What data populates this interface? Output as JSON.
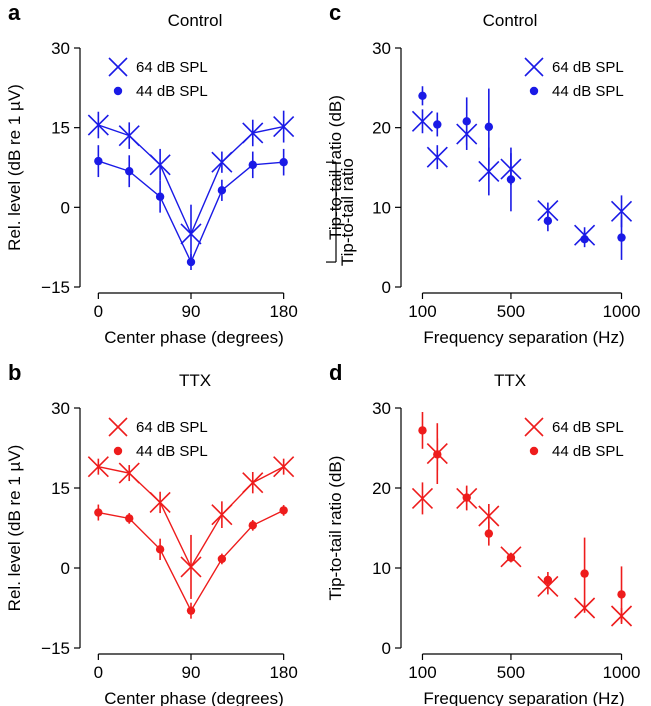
{
  "chart_data": [
    {
      "id": "a",
      "type": "line",
      "panel_letter": "a",
      "title": "Control",
      "xlabel": "Center phase (degrees)",
      "ylabel": "Rel. level (dB re 1 µV)",
      "xlim": [
        -12,
        192
      ],
      "ylim": [
        -15,
        30
      ],
      "xticks": [
        0,
        90,
        180
      ],
      "xtick_labels": [
        "0",
        "90",
        "180"
      ],
      "yticks": [
        -15,
        0,
        15,
        30
      ],
      "ytick_labels": [
        "−15",
        "0",
        "15",
        "30"
      ],
      "color": "#1a1ae6",
      "legend_position": "top-center",
      "annotation": "Tip-to-tail ratio",
      "series": [
        {
          "name": "64 dB SPL",
          "marker": "x",
          "connected": true,
          "x": [
            0,
            30,
            60,
            90,
            120,
            150,
            180
          ],
          "y": [
            15.5,
            13.5,
            8,
            -5,
            8.5,
            14,
            15.2
          ],
          "err": [
            2.5,
            2.5,
            3,
            5.5,
            2,
            2.5,
            3
          ]
        },
        {
          "name": "44 dB SPL",
          "marker": "dot",
          "connected": true,
          "x": [
            0,
            30,
            60,
            90,
            120,
            150,
            180
          ],
          "y": [
            8.7,
            6.8,
            2,
            -10.3,
            3.2,
            8,
            8.5
          ],
          "err": [
            3,
            3,
            3,
            1.5,
            2,
            2.5,
            2.5
          ]
        }
      ]
    },
    {
      "id": "b",
      "type": "line",
      "panel_letter": "b",
      "title": "TTX",
      "xlabel": "Center phase (degrees)",
      "ylabel": "Rel. level (dB re 1 µV)",
      "xlim": [
        -12,
        192
      ],
      "ylim": [
        -15,
        30
      ],
      "xticks": [
        0,
        90,
        180
      ],
      "xtick_labels": [
        "0",
        "90",
        "180"
      ],
      "yticks": [
        -15,
        0,
        15,
        30
      ],
      "ytick_labels": [
        "−15",
        "0",
        "15",
        "30"
      ],
      "color": "#ee1c1c",
      "legend_position": "top-center",
      "series": [
        {
          "name": "64 dB SPL",
          "marker": "x",
          "connected": true,
          "x": [
            0,
            30,
            60,
            90,
            120,
            150,
            180
          ],
          "y": [
            19,
            17.8,
            12.3,
            0.2,
            10,
            16,
            19
          ],
          "err": [
            1.5,
            1.5,
            2,
            6,
            2.5,
            2,
            1.5
          ]
        },
        {
          "name": "44 dB SPL",
          "marker": "dot",
          "connected": true,
          "x": [
            0,
            30,
            60,
            90,
            120,
            150,
            180
          ],
          "y": [
            10.4,
            9.3,
            3.5,
            -8,
            1.7,
            8,
            10.8
          ],
          "err": [
            1.5,
            1,
            2,
            1.5,
            1,
            1,
            1
          ]
        }
      ]
    },
    {
      "id": "c",
      "type": "scatter",
      "panel_letter": "c",
      "title": "Control",
      "xlabel": "Frequency separation (Hz)",
      "ylabel": "Tip-to-tail ratio (dB)",
      "xlim": [
        30,
        1070
      ],
      "ylim": [
        0,
        30
      ],
      "xticks": [
        100,
        500,
        1000
      ],
      "xtick_labels": [
        "100",
        "500",
        "1000"
      ],
      "yticks": [
        0,
        10,
        20,
        30
      ],
      "ytick_labels": [
        "0",
        "10",
        "20",
        "30"
      ],
      "color": "#1a1ae6",
      "legend_position": "top-right",
      "series": [
        {
          "name": "64 dB SPL",
          "marker": "x",
          "connected": false,
          "x": [
            100,
            167,
            300,
            400,
            500,
            667,
            833,
            1000
          ],
          "y": [
            20.8,
            16.3,
            19.2,
            14.5,
            14.8,
            9.6,
            6.5,
            9.5
          ],
          "err": [
            1.5,
            1.5,
            2,
            3,
            2,
            1,
            1,
            2
          ]
        },
        {
          "name": "44 dB SPL",
          "marker": "dot",
          "connected": false,
          "x": [
            100,
            167,
            300,
            400,
            500,
            667,
            833,
            1000
          ],
          "y": [
            24,
            20.4,
            20.8,
            20.1,
            13.5,
            8.3,
            6,
            6.2
          ],
          "err": [
            1.2,
            1.5,
            3,
            4.8,
            4,
            1.3,
            1,
            2.8
          ]
        }
      ]
    },
    {
      "id": "d",
      "type": "scatter",
      "panel_letter": "d",
      "title": "TTX",
      "xlabel": "Frequency separation (Hz)",
      "ylabel": "Tip-to-tail ratio (dB)",
      "xlim": [
        30,
        1070
      ],
      "ylim": [
        0,
        30
      ],
      "xticks": [
        100,
        500,
        1000
      ],
      "xtick_labels": [
        "100",
        "500",
        "1000"
      ],
      "yticks": [
        0,
        10,
        20,
        30
      ],
      "ytick_labels": [
        "0",
        "10",
        "20",
        "30"
      ],
      "color": "#ee1c1c",
      "legend_position": "top-right",
      "series": [
        {
          "name": "64 dB SPL",
          "marker": "x",
          "connected": false,
          "x": [
            100,
            167,
            300,
            400,
            500,
            667,
            833,
            1000
          ],
          "y": [
            18.7,
            24.3,
            18.7,
            16.5,
            11.4,
            7.7,
            5,
            4
          ],
          "err": [
            2,
            3.8,
            1.5,
            1.5,
            0.5,
            1,
            0.6,
            1
          ]
        },
        {
          "name": "44 dB SPL",
          "marker": "dot",
          "connected": false,
          "x": [
            100,
            167,
            300,
            400,
            500,
            667,
            833,
            1000
          ],
          "y": [
            27.2,
            24.2,
            18.8,
            14.3,
            11.3,
            8.5,
            9.3,
            6.7
          ],
          "err": [
            2.3,
            2,
            1.5,
            1.5,
            0.6,
            1,
            4.5,
            3.5
          ]
        }
      ]
    }
  ]
}
